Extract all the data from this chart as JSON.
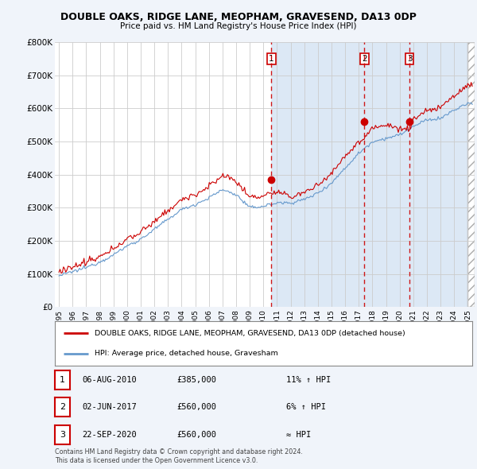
{
  "title": "DOUBLE OAKS, RIDGE LANE, MEOPHAM, GRAVESEND, DA13 0DP",
  "subtitle": "Price paid vs. HM Land Registry's House Price Index (HPI)",
  "background_color": "#f0f4fa",
  "plot_bg_color": "#dce8f5",
  "plot_bg_color_left": "#ffffff",
  "legend_label_red": "DOUBLE OAKS, RIDGE LANE, MEOPHAM, GRAVESEND, DA13 0DP (detached house)",
  "legend_label_blue": "HPI: Average price, detached house, Gravesham",
  "sales": [
    {
      "num": 1,
      "date": "06-AUG-2010",
      "price": "£385,000",
      "rel": "11% ↑ HPI",
      "x": 2010.59
    },
    {
      "num": 2,
      "date": "02-JUN-2017",
      "price": "£560,000",
      "rel": "6% ↑ HPI",
      "x": 2017.42
    },
    {
      "num": 3,
      "date": "22-SEP-2020",
      "price": "£560,000",
      "rel": "≈ HPI",
      "x": 2020.72
    }
  ],
  "footer1": "Contains HM Land Registry data © Crown copyright and database right 2024.",
  "footer2": "This data is licensed under the Open Government Licence v3.0.",
  "ylim": [
    0,
    800000
  ],
  "xlim": [
    1994.7,
    2025.5
  ],
  "yticks": [
    0,
    100000,
    200000,
    300000,
    400000,
    500000,
    600000,
    700000,
    800000
  ],
  "ytick_labels": [
    "£0",
    "£100K",
    "£200K",
    "£300K",
    "£400K",
    "£500K",
    "£600K",
    "£700K",
    "£800K"
  ],
  "xticks": [
    1995,
    1996,
    1997,
    1998,
    1999,
    2000,
    2001,
    2002,
    2003,
    2004,
    2005,
    2006,
    2007,
    2008,
    2009,
    2010,
    2011,
    2012,
    2013,
    2014,
    2015,
    2016,
    2017,
    2018,
    2019,
    2020,
    2021,
    2022,
    2023,
    2024,
    2025
  ],
  "red_color": "#cc0000",
  "blue_color": "#6699cc",
  "dashed_color": "#cc0000",
  "sale1_x": 2010.59,
  "sale2_x": 2017.42,
  "sale3_x": 2020.72,
  "sale1_y": 385000,
  "sale2_y": 560000,
  "sale3_y": 560000
}
